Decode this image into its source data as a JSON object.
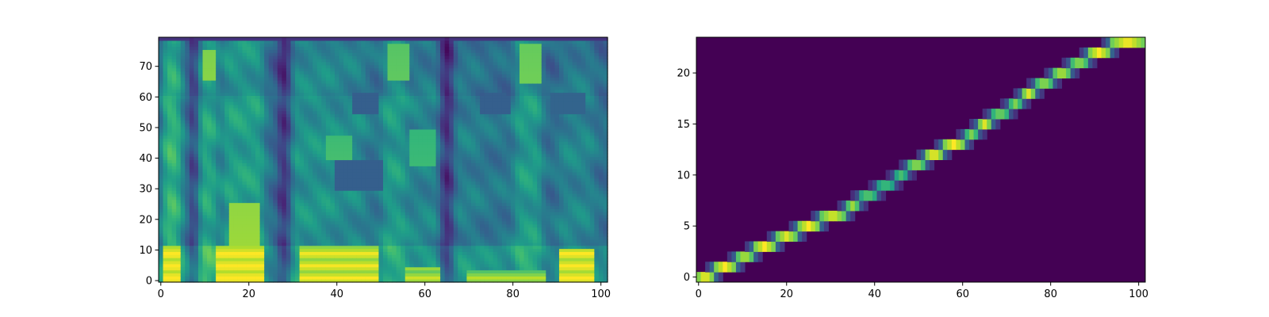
{
  "figure": {
    "background": "#ffffff",
    "colormap": "viridis",
    "colormap_stops": [
      "#440154",
      "#482878",
      "#3e4a89",
      "#31688e",
      "#26828e",
      "#1f9e89",
      "#35b779",
      "#6ece58",
      "#b5de2b",
      "#fde725"
    ]
  },
  "chart_data": [
    {
      "type": "heatmap",
      "name": "mel-spectrogram",
      "description_kind": "image",
      "title": "",
      "xlabel": "",
      "ylabel": "",
      "origin": "lower",
      "xlim": [
        -0.5,
        101.5
      ],
      "ylim": [
        -0.5,
        79.5
      ],
      "n_cols": 102,
      "n_rows": 80,
      "xticks": [
        0,
        20,
        40,
        60,
        80,
        100
      ],
      "xtick_labels": [
        "0",
        "20",
        "40",
        "60",
        "80",
        "100"
      ],
      "yticks": [
        0,
        10,
        20,
        30,
        40,
        50,
        60,
        70
      ],
      "ytick_labels": [
        "0",
        "10",
        "20",
        "30",
        "40",
        "50",
        "60",
        "70"
      ],
      "grid": false,
      "legend": "none",
      "column_energy": [
        {
          "start": 0,
          "end": 1,
          "level": 0.45
        },
        {
          "start": 1,
          "end": 5,
          "level": 0.8
        },
        {
          "start": 5,
          "end": 7,
          "level": 0.5
        },
        {
          "start": 7,
          "end": 9,
          "level": 0.22
        },
        {
          "start": 9,
          "end": 13,
          "level": 0.72
        },
        {
          "start": 13,
          "end": 15,
          "level": 0.55
        },
        {
          "start": 15,
          "end": 24,
          "level": 0.68
        },
        {
          "start": 24,
          "end": 27,
          "level": 0.45
        },
        {
          "start": 27,
          "end": 30,
          "level": 0.2
        },
        {
          "start": 30,
          "end": 40,
          "level": 0.62
        },
        {
          "start": 40,
          "end": 47,
          "level": 0.58
        },
        {
          "start": 47,
          "end": 51,
          "level": 0.5
        },
        {
          "start": 51,
          "end": 56,
          "level": 0.66
        },
        {
          "start": 56,
          "end": 64,
          "level": 0.55
        },
        {
          "start": 64,
          "end": 67,
          "level": 0.18
        },
        {
          "start": 67,
          "end": 73,
          "level": 0.52
        },
        {
          "start": 73,
          "end": 81,
          "level": 0.48
        },
        {
          "start": 81,
          "end": 87,
          "level": 0.66
        },
        {
          "start": 87,
          "end": 91,
          "level": 0.45
        },
        {
          "start": 91,
          "end": 99,
          "level": 0.55
        },
        {
          "start": 99,
          "end": 102,
          "level": 0.45
        }
      ],
      "hot_regions": [
        {
          "x0": 1,
          "x1": 5,
          "y0": 0,
          "y1": 12,
          "level": 0.97
        },
        {
          "x0": 13,
          "x1": 24,
          "y0": 0,
          "y1": 12,
          "level": 0.97
        },
        {
          "x0": 16,
          "x1": 23,
          "y0": 12,
          "y1": 26,
          "level": 0.85
        },
        {
          "x0": 32,
          "x1": 50,
          "y0": 0,
          "y1": 12,
          "level": 0.92
        },
        {
          "x0": 56,
          "x1": 64,
          "y0": 0,
          "y1": 5,
          "level": 0.85
        },
        {
          "x0": 70,
          "x1": 88,
          "y0": 0,
          "y1": 4,
          "level": 0.82
        },
        {
          "x0": 91,
          "x1": 99,
          "y0": 0,
          "y1": 11,
          "level": 0.95
        },
        {
          "x0": 10,
          "x1": 13,
          "y0": 66,
          "y1": 76,
          "level": 0.82
        },
        {
          "x0": 52,
          "x1": 57,
          "y0": 66,
          "y1": 78,
          "level": 0.75
        },
        {
          "x0": 82,
          "x1": 87,
          "y0": 65,
          "y1": 78,
          "level": 0.78
        },
        {
          "x0": 38,
          "x1": 44,
          "y0": 40,
          "y1": 48,
          "level": 0.7
        },
        {
          "x0": 57,
          "x1": 63,
          "y0": 38,
          "y1": 50,
          "level": 0.68
        }
      ],
      "dark_regions": [
        {
          "x0": 40,
          "x1": 51,
          "y0": 30,
          "y1": 40,
          "level": 0.3
        },
        {
          "x0": 44,
          "x1": 50,
          "y0": 55,
          "y1": 62,
          "level": 0.3
        },
        {
          "x0": 73,
          "x1": 80,
          "y0": 55,
          "y1": 62,
          "level": 0.3
        },
        {
          "x0": 89,
          "x1": 97,
          "y0": 55,
          "y1": 62,
          "level": 0.32
        },
        {
          "x0": 0,
          "x1": 102,
          "y0": 79,
          "y1": 80,
          "level": 0.15
        }
      ]
    },
    {
      "type": "heatmap",
      "name": "alignment",
      "description_kind": "image",
      "title": "",
      "xlabel": "",
      "ylabel": "",
      "origin": "lower",
      "xlim": [
        -0.5,
        101.5
      ],
      "ylim": [
        -0.5,
        23.5
      ],
      "n_cols": 102,
      "n_rows": 24,
      "xticks": [
        0,
        20,
        40,
        60,
        80,
        100
      ],
      "xtick_labels": [
        "0",
        "20",
        "40",
        "60",
        "80",
        "100"
      ],
      "yticks": [
        0,
        5,
        10,
        15,
        20
      ],
      "ytick_labels": [
        "0",
        "5",
        "10",
        "15",
        "20"
      ],
      "grid": false,
      "legend": "none",
      "alignment_path": [
        {
          "row": 0,
          "start": 0,
          "end": 4,
          "peak": 1.0
        },
        {
          "row": 1,
          "start": 4,
          "end": 9,
          "peak": 1.0
        },
        {
          "row": 2,
          "start": 9,
          "end": 13,
          "peak": 0.9
        },
        {
          "row": 3,
          "start": 13,
          "end": 18,
          "peak": 1.0
        },
        {
          "row": 4,
          "start": 18,
          "end": 23,
          "peak": 0.95
        },
        {
          "row": 5,
          "start": 23,
          "end": 28,
          "peak": 1.0
        },
        {
          "row": 6,
          "start": 28,
          "end": 34,
          "peak": 0.95
        },
        {
          "row": 7,
          "start": 34,
          "end": 37,
          "peak": 0.85
        },
        {
          "row": 8,
          "start": 37,
          "end": 41,
          "peak": 0.75
        },
        {
          "row": 9,
          "start": 41,
          "end": 45,
          "peak": 0.7
        },
        {
          "row": 10,
          "start": 45,
          "end": 48,
          "peak": 0.7
        },
        {
          "row": 11,
          "start": 48,
          "end": 52,
          "peak": 0.85
        },
        {
          "row": 12,
          "start": 52,
          "end": 56,
          "peak": 1.0
        },
        {
          "row": 13,
          "start": 56,
          "end": 61,
          "peak": 1.0
        },
        {
          "row": 14,
          "start": 61,
          "end": 64,
          "peak": 0.8
        },
        {
          "row": 15,
          "start": 64,
          "end": 67,
          "peak": 0.95
        },
        {
          "row": 16,
          "start": 67,
          "end": 71,
          "peak": 0.8
        },
        {
          "row": 17,
          "start": 71,
          "end": 74,
          "peak": 0.8
        },
        {
          "row": 18,
          "start": 74,
          "end": 77,
          "peak": 0.95
        },
        {
          "row": 19,
          "start": 77,
          "end": 81,
          "peak": 0.85
        },
        {
          "row": 20,
          "start": 81,
          "end": 85,
          "peak": 0.9
        },
        {
          "row": 21,
          "start": 85,
          "end": 89,
          "peak": 0.85
        },
        {
          "row": 22,
          "start": 89,
          "end": 94,
          "peak": 1.0
        },
        {
          "row": 23,
          "start": 94,
          "end": 102,
          "peak": 1.0
        }
      ]
    }
  ]
}
